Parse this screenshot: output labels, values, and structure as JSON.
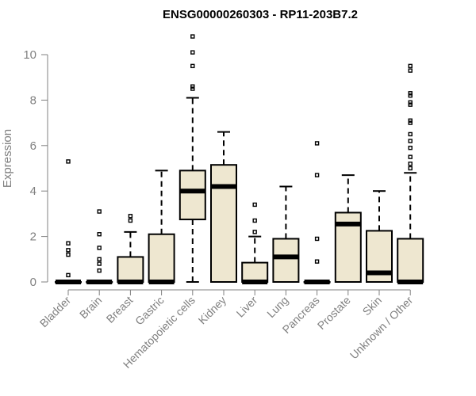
{
  "chart_data": {
    "type": "boxplot",
    "title": "ENSG00000260303 - RP11-203B7.2",
    "xlabel": "",
    "ylabel": "Expression",
    "ylim": [
      0,
      10.8
    ],
    "yticks": [
      0,
      2,
      4,
      6,
      8,
      10
    ],
    "grid": false,
    "box_fill": "#EEE7D0",
    "axis_color": "#808080",
    "categories": [
      "Bladder",
      "Brain",
      "Breast",
      "Gastric",
      "Hematopoietic cells",
      "Kidney",
      "Liver",
      "Lung",
      "Pancreas",
      "Prostate",
      "Skin",
      "Unknown / Other"
    ],
    "boxes": [
      {
        "q1": 0,
        "median": 0,
        "q3": 0,
        "low": 0,
        "high": 0,
        "outliers": [
          0.3,
          1.2,
          1.4,
          1.7,
          5.3
        ]
      },
      {
        "q1": 0,
        "median": 0,
        "q3": 0,
        "low": 0,
        "high": 0,
        "outliers": [
          0.5,
          0.8,
          1.0,
          1.5,
          2.1,
          3.1
        ]
      },
      {
        "q1": 0,
        "median": 0,
        "q3": 1.1,
        "low": 0,
        "high": 2.2,
        "outliers": [
          2.7,
          2.9
        ]
      },
      {
        "q1": 0,
        "median": 0,
        "q3": 2.1,
        "low": 0,
        "high": 4.9,
        "outliers": []
      },
      {
        "q1": 2.75,
        "median": 4.0,
        "q3": 4.9,
        "low": 0,
        "high": 8.1,
        "outliers": [
          8.5,
          8.6,
          9.5,
          10.1,
          10.8
        ]
      },
      {
        "q1": 0,
        "median": 4.2,
        "q3": 5.15,
        "low": 0,
        "high": 6.6,
        "outliers": []
      },
      {
        "q1": 0,
        "median": 0,
        "q3": 0.85,
        "low": 0,
        "high": 2.0,
        "outliers": [
          2.2,
          2.7,
          3.4
        ]
      },
      {
        "q1": 0,
        "median": 1.1,
        "q3": 1.9,
        "low": 0,
        "high": 4.2,
        "outliers": []
      },
      {
        "q1": 0,
        "median": 0,
        "q3": 0,
        "low": 0,
        "high": 0,
        "outliers": [
          0.9,
          1.9,
          4.7,
          6.1
        ]
      },
      {
        "q1": 0,
        "median": 2.55,
        "q3": 3.05,
        "low": 0,
        "high": 4.7,
        "outliers": []
      },
      {
        "q1": 0,
        "median": 0.4,
        "q3": 2.25,
        "low": 0,
        "high": 4.0,
        "outliers": []
      },
      {
        "q1": 0,
        "median": 0,
        "q3": 1.9,
        "low": 0,
        "high": 4.8,
        "outliers": [
          5.0,
          5.2,
          5.5,
          5.9,
          6.2,
          6.5,
          7.0,
          7.1,
          7.8,
          7.9,
          8.2,
          8.3,
          9.3,
          9.5
        ]
      }
    ]
  }
}
